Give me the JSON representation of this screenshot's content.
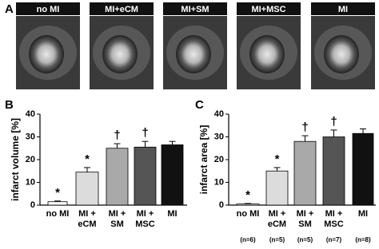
{
  "figure": {
    "panel_labels": [
      "A",
      "B",
      "C"
    ],
    "image_labels": [
      "no MI",
      "MI+eCM",
      "MI+SM",
      "MI+MSC",
      "MI"
    ]
  },
  "chart_data": [
    {
      "type": "bar",
      "ylabel": "infarct volume [%]",
      "categories": [
        "no MI",
        "MI +\neCM",
        "MI +\nSM",
        "MI +\nMSC",
        "MI"
      ],
      "values": [
        1.5,
        14.5,
        25,
        25.5,
        26.5
      ],
      "errors": [
        0.3,
        2,
        2,
        2.5,
        1.5
      ],
      "annotations": [
        "*",
        "*",
        "†",
        "†",
        null
      ],
      "colors": [
        "#ffffff",
        "#dcdcdc",
        "#a9a9a9",
        "#555555",
        "#111111"
      ],
      "ylim": [
        0,
        40
      ],
      "yticks": [
        0,
        10,
        20,
        30,
        40
      ]
    },
    {
      "type": "bar",
      "ylabel": "infarct area [%]",
      "categories": [
        "no MI",
        "MI +\neCM",
        "MI +\nSM",
        "MI +\nMSC",
        "MI"
      ],
      "values": [
        0.5,
        15,
        28,
        30,
        31.5
      ],
      "errors": [
        0.2,
        1.5,
        2.5,
        3,
        2
      ],
      "annotations": [
        "*",
        "*",
        "†",
        "†",
        null
      ],
      "n_labels": [
        "(n=6)",
        "(n=5)",
        "(n=5)",
        "(n=7)",
        "(n=8)"
      ],
      "colors": [
        "#ffffff",
        "#dcdcdc",
        "#a9a9a9",
        "#555555",
        "#111111"
      ],
      "ylim": [
        0,
        40
      ],
      "yticks": [
        0,
        10,
        20,
        30,
        40
      ]
    }
  ]
}
